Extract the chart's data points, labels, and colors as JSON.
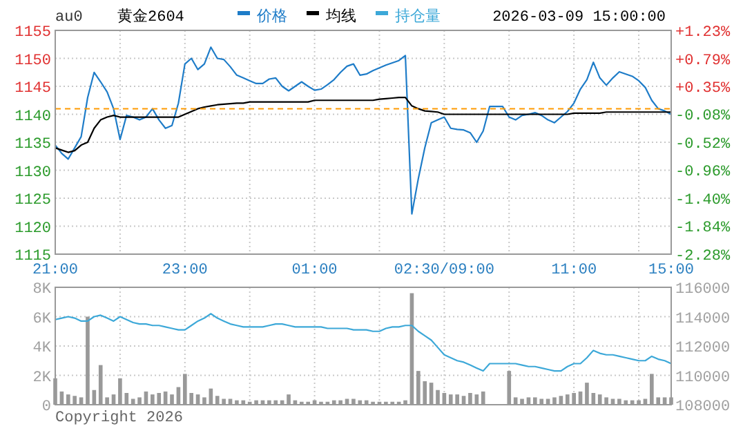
{
  "chart_data": [
    {
      "type": "line",
      "title": "黄金2604",
      "subtitle": "au0",
      "annotations": [
        "2026-03-09 15:00:00"
      ],
      "legend": "top",
      "grid": true,
      "categories": [
        "21:00",
        null,
        null,
        null,
        null,
        null,
        null,
        null,
        null,
        null,
        null,
        null,
        null,
        null,
        null,
        null,
        null,
        null,
        null,
        null,
        "23:00",
        null,
        null,
        null,
        null,
        null,
        null,
        null,
        null,
        null,
        null,
        null,
        null,
        null,
        null,
        null,
        null,
        null,
        null,
        null,
        "01:00",
        null,
        null,
        null,
        null,
        null,
        null,
        null,
        null,
        null,
        null,
        null,
        null,
        null,
        null,
        null,
        null,
        null,
        null,
        null,
        "02:30/09:00",
        null,
        null,
        null,
        null,
        null,
        null,
        null,
        null,
        null,
        null,
        null,
        null,
        null,
        null,
        null,
        null,
        null,
        null,
        null,
        "11:00",
        null,
        null,
        null,
        null,
        null,
        null,
        null,
        null,
        null,
        null,
        null,
        null,
        null,
        null,
        "15:00"
      ],
      "ylim": [
        1115,
        1155
      ],
      "yticks": [
        1115,
        1120,
        1125,
        1130,
        1135,
        1140,
        1145,
        1150,
        1155
      ],
      "y2lim": [
        -2.28,
        1.23
      ],
      "y2ticks": [
        {
          "value": -2.28,
          "label": "-2.28%"
        },
        {
          "value": -1.84,
          "label": "-1.84%"
        },
        {
          "value": -1.4,
          "label": "-1.40%"
        },
        {
          "value": -0.96,
          "label": "-0.96%"
        },
        {
          "value": -0.52,
          "label": "-0.52%"
        },
        {
          "value": -0.08,
          "label": "-0.08%"
        },
        {
          "value": 0.35,
          "label": "+0.35%"
        },
        {
          "value": 0.79,
          "label": "+0.79%"
        },
        {
          "value": 1.23,
          "label": "+1.23%"
        }
      ],
      "ref_lines": [
        {
          "axis": "y",
          "value": 1141,
          "color": "#ff9900",
          "line_style": "dashed"
        }
      ],
      "series": [
        {
          "name": "价格",
          "color": "#1e7cc8",
          "values": [
            1134.5,
            1133,
            1132,
            1134,
            1136,
            1143,
            1147.5,
            1145.8,
            1144,
            1141,
            1135.5,
            1139.8,
            1139.5,
            1139,
            1139.5,
            1141,
            1139,
            1137.5,
            1138,
            1142,
            1149,
            1150,
            1148,
            1149,
            1152,
            1150,
            1149.8,
            1148.5,
            1147,
            1146.5,
            1146,
            1145.5,
            1145.5,
            1146.3,
            1146.5,
            1145,
            1144.2,
            1145,
            1145.8,
            1145,
            1144.3,
            1144.5,
            1145.3,
            1146.2,
            1147.5,
            1148.6,
            1149,
            1147,
            1147.2,
            1147.8,
            1148.3,
            1148.8,
            1149.2,
            1149.6,
            1150.5,
            1122.2,
            1128.5,
            1134,
            1138.5,
            1139,
            1139.5,
            1137.5,
            1137.3,
            1137.2,
            1136.7,
            1135,
            1137,
            1141.4,
            1141.4,
            1141.4,
            1139.5,
            1139,
            1139.8,
            1140,
            1140.3,
            1139.8,
            1139,
            1138.5,
            1139.5,
            1140.5,
            1142,
            1144.5,
            1146.2,
            1149.3,
            1146.5,
            1145.2,
            1146.5,
            1147.6,
            1147.2,
            1146.8,
            1146,
            1144.8,
            1142.5,
            1141,
            1140.6,
            1140
          ]
        },
        {
          "name": "均线",
          "color": "#000000",
          "values": [
            1134,
            1133.6,
            1133.2,
            1133.5,
            1134.5,
            1135,
            1137.5,
            1139,
            1139.5,
            1139.8,
            1139.5,
            1139.5,
            1139.5,
            1139.5,
            1139.5,
            1139.5,
            1139.5,
            1139.5,
            1139.5,
            1139.5,
            1140,
            1140.5,
            1141,
            1141.3,
            1141.5,
            1141.7,
            1141.8,
            1141.9,
            1142,
            1142,
            1142.2,
            1142.2,
            1142.2,
            1142.2,
            1142.2,
            1142.2,
            1142.2,
            1142.2,
            1142.2,
            1142.2,
            1142.5,
            1142.5,
            1142.5,
            1142.5,
            1142.5,
            1142.5,
            1142.5,
            1142.5,
            1142.5,
            1142.5,
            1142.7,
            1142.8,
            1142.9,
            1143,
            1143,
            1141.5,
            1141,
            1140.6,
            1140.5,
            1140.4,
            1140,
            1140,
            1140,
            1140,
            1140,
            1140,
            1140,
            1140,
            1140,
            1140,
            1140,
            1140,
            1140,
            1140,
            1140,
            1140,
            1140,
            1140,
            1140,
            1140,
            1140.2,
            1140.2,
            1140.2,
            1140.2,
            1140.2,
            1140.4,
            1140.4,
            1140.4,
            1140.4,
            1140.4,
            1140.4,
            1140.4,
            1140.4,
            1140.4,
            1140.4,
            1140.4
          ]
        }
      ]
    },
    {
      "type": "bar",
      "grid": true,
      "tick_labels": "y",
      "legend": "top",
      "annotations": [
        "Copyright 2026"
      ],
      "categories": [
        null,
        null,
        null,
        null,
        null,
        null,
        null,
        null,
        null,
        null,
        null,
        null,
        null,
        null,
        null,
        null,
        null,
        null,
        null,
        null,
        null,
        null,
        null,
        null,
        null,
        null,
        null,
        null,
        null,
        null,
        null,
        null,
        null,
        null,
        null,
        null,
        null,
        null,
        null,
        null,
        null,
        null,
        null,
        null,
        null,
        null,
        null,
        null,
        null,
        null,
        null,
        null,
        null,
        null,
        null,
        null,
        null,
        null,
        null,
        null,
        null,
        null,
        null,
        null,
        null,
        null,
        null,
        null,
        null,
        null,
        null,
        null,
        null,
        null,
        null,
        null,
        null,
        null,
        null,
        null,
        null,
        null,
        null,
        null,
        null,
        null,
        null,
        null,
        null,
        null,
        null,
        null,
        null,
        null,
        null,
        null
      ],
      "ylim": [
        0,
        8000
      ],
      "yticks": [
        0,
        {
          "value": 2000,
          "label": "2K"
        },
        {
          "value": 4000,
          "label": "4K"
        },
        {
          "value": 6000,
          "label": "6K"
        },
        {
          "value": 8000,
          "label": "8K"
        }
      ],
      "y2lim": [
        108000,
        116000
      ],
      "y2ticks": [
        108000,
        110000,
        112000,
        114000,
        116000
      ],
      "series": [
        {
          "color": "#999999",
          "values": [
            1800,
            900,
            700,
            600,
            500,
            6000,
            1000,
            2700,
            500,
            700,
            1800,
            800,
            400,
            500,
            900,
            700,
            800,
            900,
            700,
            1200,
            2100,
            800,
            700,
            500,
            1100,
            600,
            400,
            400,
            300,
            300,
            200,
            300,
            300,
            300,
            300,
            300,
            700,
            300,
            200,
            200,
            300,
            200,
            200,
            300,
            300,
            400,
            400,
            300,
            300,
            200,
            200,
            200,
            200,
            200,
            300,
            7600,
            2300,
            1600,
            1500,
            1000,
            800,
            700,
            700,
            600,
            800,
            700,
            900,
            0,
            0,
            0,
            2300,
            500,
            400,
            500,
            500,
            400,
            400,
            500,
            600,
            700,
            800,
            900,
            1500,
            800,
            700,
            500,
            400,
            400,
            300,
            300,
            300,
            400,
            2100,
            500,
            500,
            500
          ]
        },
        {
          "name": "持仓量",
          "type": "line",
          "axis": "y2",
          "color": "#3ca8d8",
          "values": [
            113800,
            113900,
            114000,
            113900,
            113700,
            113700,
            114000,
            114100,
            113900,
            113700,
            114000,
            113800,
            113600,
            113500,
            113500,
            113400,
            113400,
            113300,
            113200,
            113100,
            113100,
            113400,
            113700,
            113900,
            114200,
            113900,
            113700,
            113500,
            113400,
            113300,
            113300,
            113300,
            113300,
            113400,
            113500,
            113500,
            113400,
            113300,
            113300,
            113300,
            113300,
            113300,
            113200,
            113200,
            113200,
            113200,
            113100,
            113100,
            113100,
            113000,
            113000,
            113200,
            113300,
            113300,
            113400,
            113400,
            113000,
            112700,
            112400,
            111900,
            111400,
            111200,
            111000,
            110900,
            110700,
            110500,
            110300,
            110800,
            110800,
            110800,
            110800,
            110800,
            110700,
            110600,
            110600,
            110500,
            110400,
            110300,
            110300,
            110600,
            110800,
            110800,
            111200,
            111700,
            111500,
            111400,
            111400,
            111300,
            111200,
            111100,
            111000,
            111000,
            111300,
            111100,
            111000,
            110800
          ]
        }
      ]
    }
  ]
}
